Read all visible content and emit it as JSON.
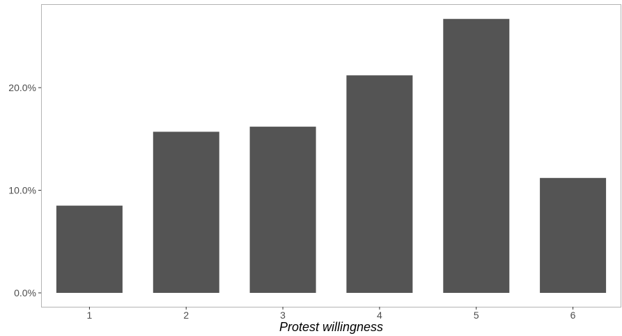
{
  "chart_data": {
    "type": "bar",
    "xlabel": "Protest willingness",
    "ylabel": "",
    "categories": [
      "1",
      "2",
      "3",
      "4",
      "5",
      "6"
    ],
    "values": [
      8.5,
      15.7,
      16.2,
      21.2,
      26.7,
      11.2
    ],
    "ylim": [
      0,
      29.0
    ],
    "yticks": [
      0,
      10,
      20
    ],
    "ytick_labels": [
      "0.0%",
      "10.0%",
      "20.0%"
    ],
    "grid": false,
    "legend": "none",
    "bar_color": "#545454",
    "frame_color": "#b3b3b3"
  }
}
